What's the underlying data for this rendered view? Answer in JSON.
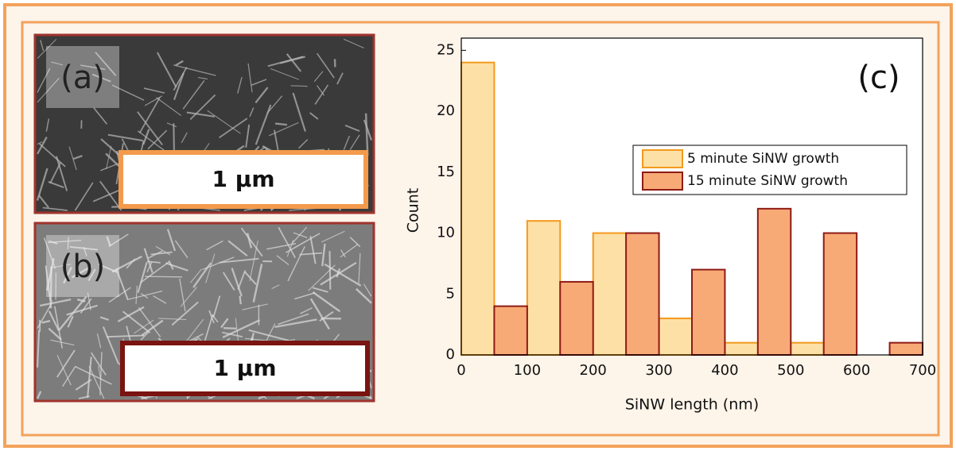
{
  "images": [
    {
      "label": "(a)",
      "scale_bar": "1 µm"
    },
    {
      "label": "(b)",
      "scale_bar": "1 µm"
    }
  ],
  "chart_data": {
    "type": "histogram",
    "annotation": "(c)",
    "x_label": "SiNW length (nm)",
    "y_label": "Count",
    "bins": [
      0,
      100,
      200,
      300,
      400,
      500,
      600,
      700
    ],
    "series": [
      {
        "name": "5 minute SiNW growth",
        "color": "#fde0a6",
        "edge_color": "#f39a1e",
        "values": [
          24,
          11,
          10,
          3,
          1,
          1,
          0
        ]
      },
      {
        "name": "15 minute SiNW growth",
        "color": "#f7aa76",
        "edge_color": "#8e1b16",
        "values": [
          4,
          6,
          10,
          7,
          12,
          10,
          1
        ]
      }
    ],
    "xlim": [
      0,
      700
    ],
    "xticks": [
      0,
      100,
      200,
      300,
      400,
      500,
      600,
      700
    ],
    "ylim": [
      0,
      26
    ],
    "yticks": [
      0,
      5,
      10,
      15,
      20,
      25
    ]
  }
}
